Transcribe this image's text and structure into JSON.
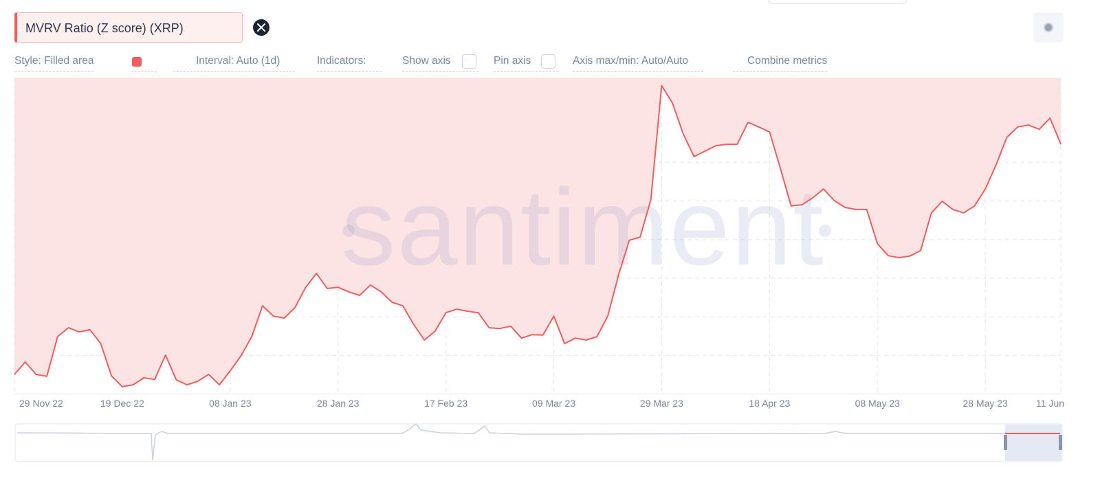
{
  "ui": {
    "metric": "MVRV Ratio (Z score) (XRP)",
    "style": "Style: Filled area",
    "interval": "Interval: Auto (1d)",
    "indicators": "Indicators:",
    "show_axis": "Show axis",
    "pin_axis": "Pin axis",
    "axis_minmax": "Axis max/min: Auto/Auto",
    "combine": "Combine metrics",
    "watermark": "santiment"
  },
  "chart_data": {
    "type": "area",
    "color": "#f25c5c",
    "fill": "#fde4e4",
    "grid": true,
    "xlim": [
      "2022-11-29",
      "2023-06-11"
    ],
    "ylim": [
      0,
      8.2
    ],
    "xticks": [
      {
        "value": "2022-11-29",
        "label": "29 Nov 22"
      },
      {
        "value": "2022-12-19",
        "label": "19 Dec 22"
      },
      {
        "value": "2023-01-08",
        "label": "08 Jan 23"
      },
      {
        "value": "2023-01-28",
        "label": "28 Jan 23"
      },
      {
        "value": "2023-02-17",
        "label": "17 Feb 23"
      },
      {
        "value": "2023-03-09",
        "label": "09 Mar 23"
      },
      {
        "value": "2023-03-29",
        "label": "29 Mar 23"
      },
      {
        "value": "2023-04-18",
        "label": "18 Apr 23"
      },
      {
        "value": "2023-05-08",
        "label": "08 May 23"
      },
      {
        "value": "2023-05-28",
        "label": "28 May 23"
      },
      {
        "value": "2023-06-11",
        "label": "11 Jun"
      }
    ],
    "x": [
      "2022-11-29",
      "2022-12-01",
      "2022-12-03",
      "2022-12-05",
      "2022-12-07",
      "2022-12-09",
      "2022-12-11",
      "2022-12-13",
      "2022-12-15",
      "2022-12-17",
      "2022-12-19",
      "2022-12-21",
      "2022-12-23",
      "2022-12-25",
      "2022-12-27",
      "2022-12-29",
      "2022-12-31",
      "2023-01-02",
      "2023-01-04",
      "2023-01-06",
      "2023-01-08",
      "2023-01-10",
      "2023-01-12",
      "2023-01-14",
      "2023-01-16",
      "2023-01-18",
      "2023-01-20",
      "2023-01-22",
      "2023-01-24",
      "2023-01-26",
      "2023-01-28",
      "2023-01-30",
      "2023-02-01",
      "2023-02-03",
      "2023-02-05",
      "2023-02-07",
      "2023-02-09",
      "2023-02-11",
      "2023-02-13",
      "2023-02-15",
      "2023-02-17",
      "2023-02-19",
      "2023-02-21",
      "2023-02-23",
      "2023-02-25",
      "2023-02-27",
      "2023-03-01",
      "2023-03-03",
      "2023-03-05",
      "2023-03-07",
      "2023-03-09",
      "2023-03-11",
      "2023-03-13",
      "2023-03-15",
      "2023-03-17",
      "2023-03-19",
      "2023-03-21",
      "2023-03-23",
      "2023-03-25",
      "2023-03-27",
      "2023-03-29",
      "2023-03-31",
      "2023-04-02",
      "2023-04-04",
      "2023-04-06",
      "2023-04-08",
      "2023-04-10",
      "2023-04-12",
      "2023-04-14",
      "2023-04-16",
      "2023-04-18",
      "2023-04-20",
      "2023-04-22",
      "2023-04-24",
      "2023-04-26",
      "2023-04-28",
      "2023-04-30",
      "2023-05-02",
      "2023-05-04",
      "2023-05-06",
      "2023-05-08",
      "2023-05-10",
      "2023-05-12",
      "2023-05-14",
      "2023-05-16",
      "2023-05-18",
      "2023-05-20",
      "2023-05-22",
      "2023-05-24",
      "2023-05-26",
      "2023-05-28",
      "2023-05-30",
      "2023-06-01",
      "2023-06-03",
      "2023-06-05",
      "2023-06-07",
      "2023-06-09",
      "2023-06-11"
    ],
    "values": [
      0.5,
      0.82,
      0.5,
      0.45,
      1.48,
      1.71,
      1.6,
      1.66,
      1.3,
      0.46,
      0.18,
      0.23,
      0.41,
      0.37,
      1.0,
      0.36,
      0.23,
      0.32,
      0.5,
      0.23,
      0.59,
      0.98,
      1.48,
      2.28,
      2.01,
      1.96,
      2.23,
      2.76,
      3.12,
      2.73,
      2.76,
      2.64,
      2.55,
      2.82,
      2.64,
      2.37,
      2.28,
      1.8,
      1.39,
      1.62,
      2.1,
      2.19,
      2.14,
      2.1,
      1.71,
      1.69,
      1.75,
      1.44,
      1.53,
      1.52,
      2.01,
      1.3,
      1.44,
      1.39,
      1.48,
      2.01,
      3.08,
      3.98,
      4.06,
      5.04,
      7.99,
      7.54,
      6.74,
      6.15,
      6.29,
      6.43,
      6.47,
      6.47,
      7.04,
      6.92,
      6.79,
      5.85,
      4.87,
      4.9,
      5.08,
      5.31,
      5.01,
      4.83,
      4.78,
      4.78,
      3.89,
      3.58,
      3.53,
      3.57,
      3.71,
      4.69,
      4.99,
      4.78,
      4.69,
      4.87,
      5.31,
      5.94,
      6.65,
      6.92,
      6.97,
      6.86,
      7.15,
      6.47
    ]
  }
}
